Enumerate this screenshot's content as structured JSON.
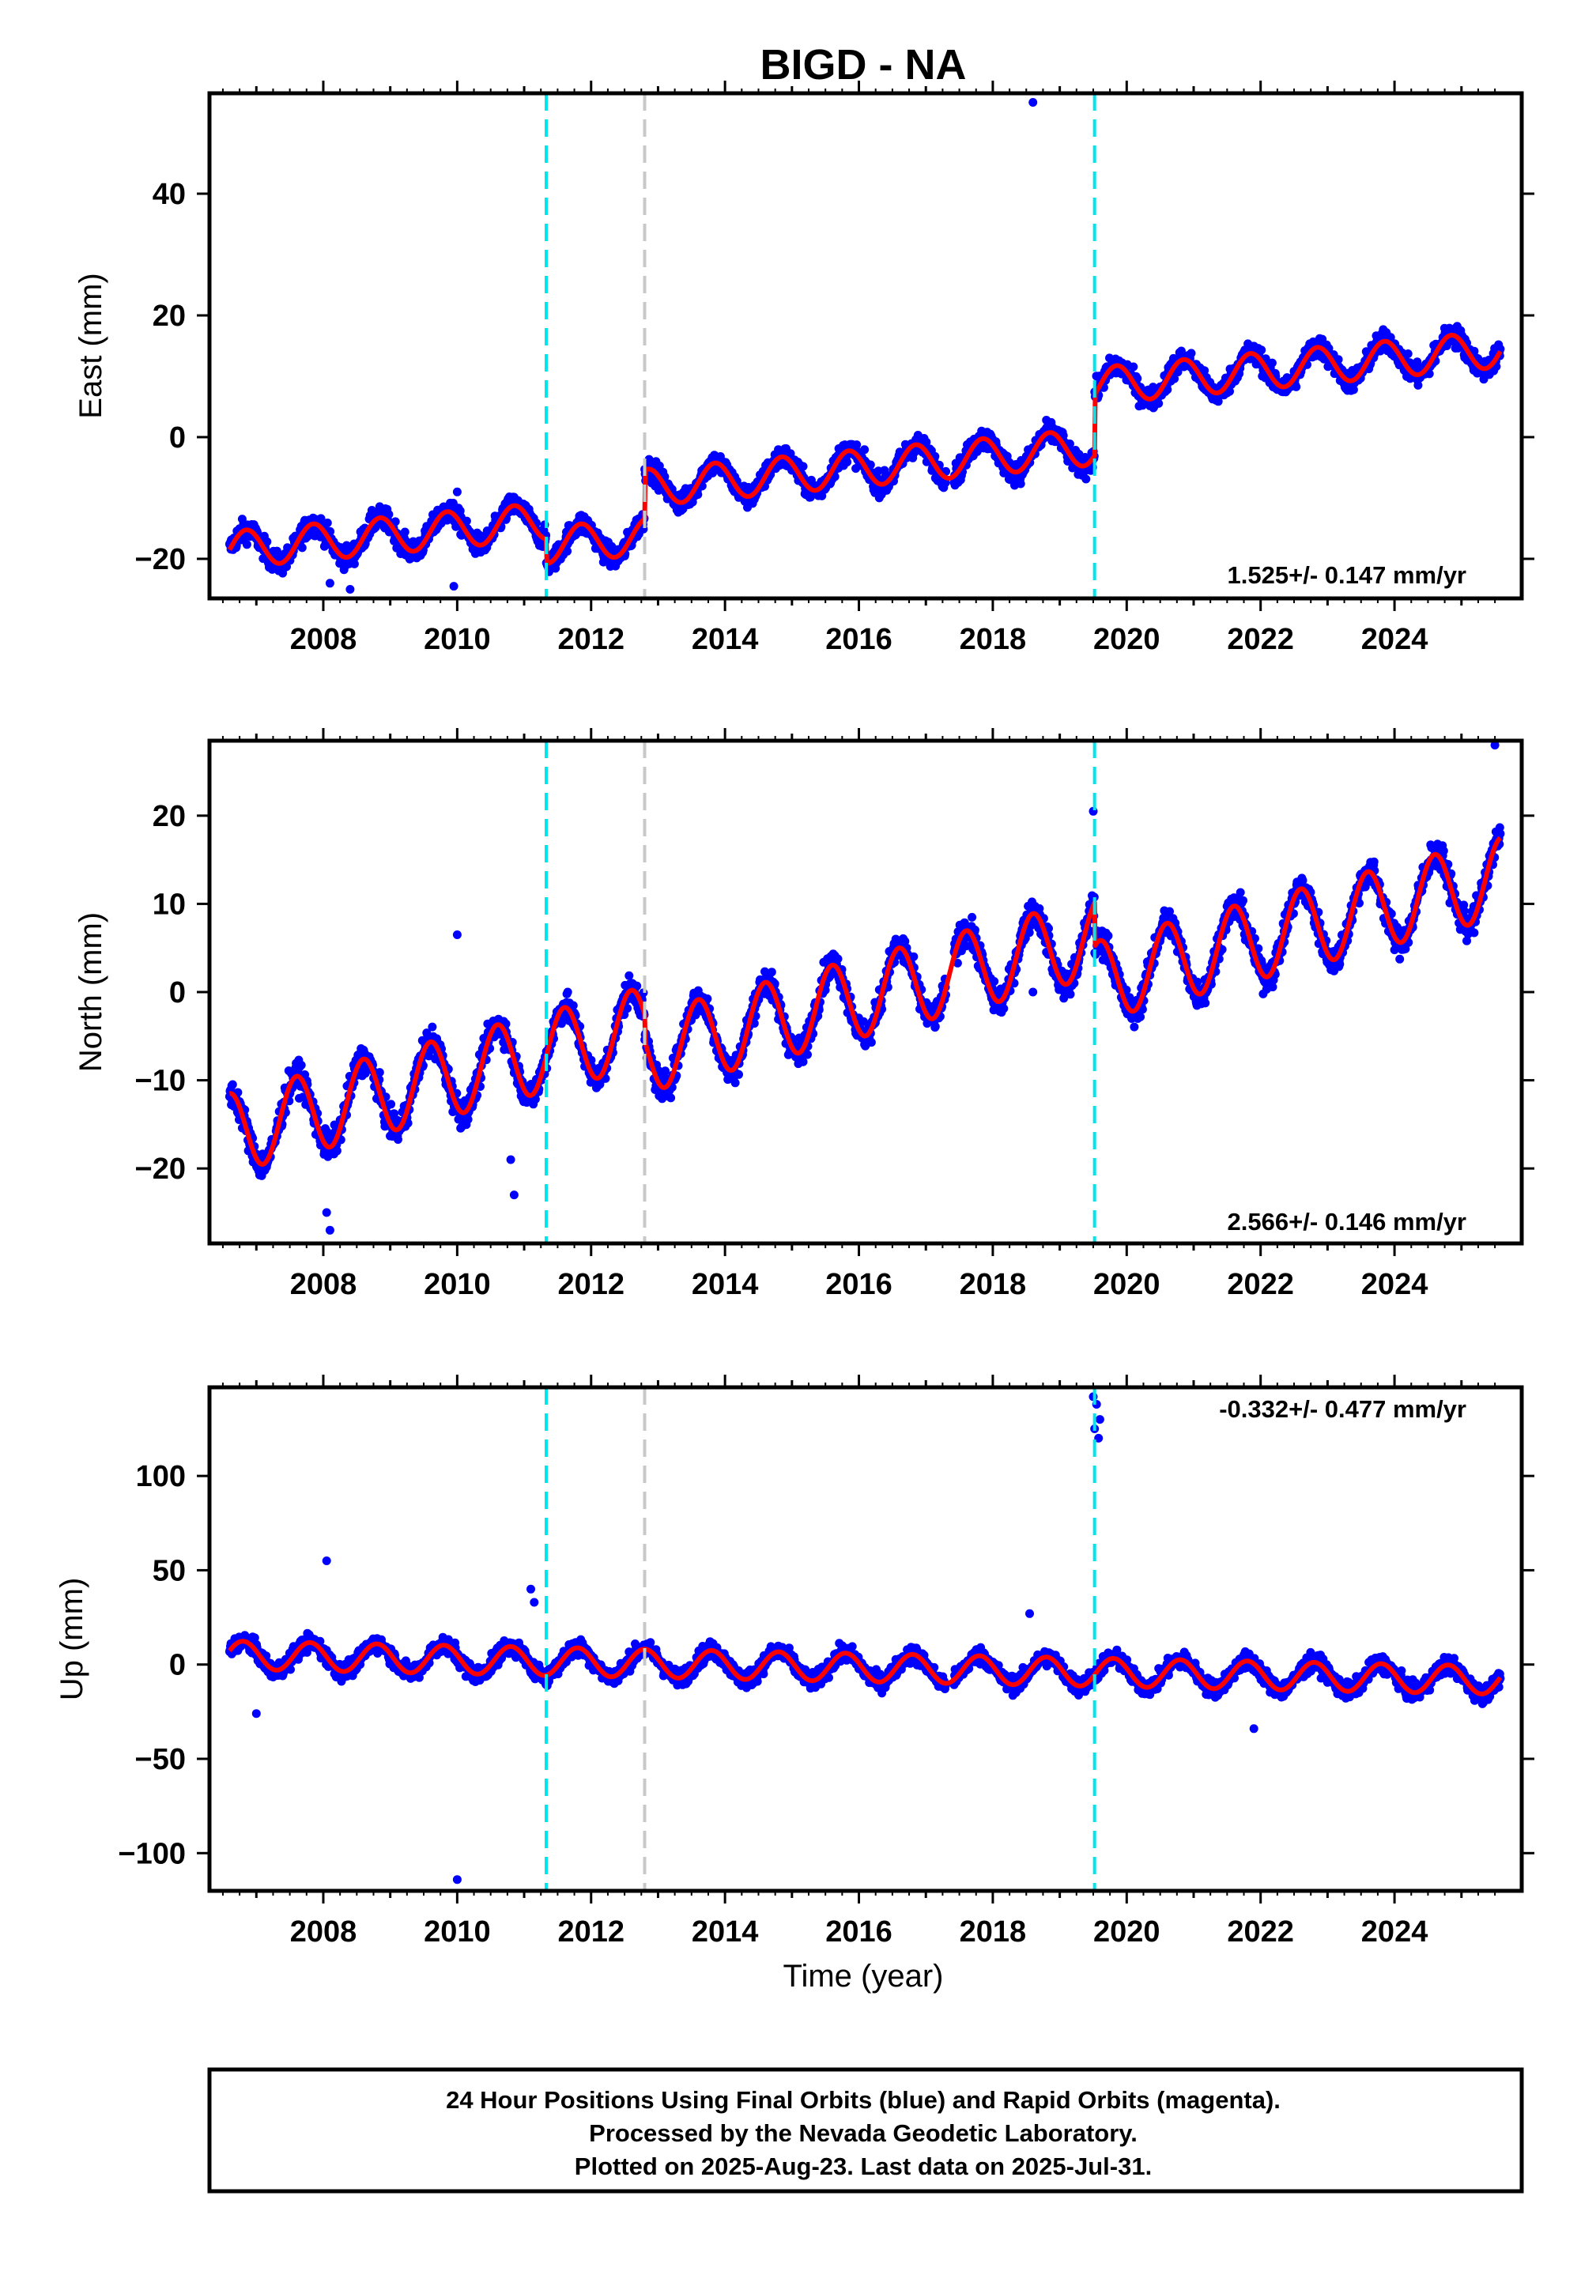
{
  "title": "BIGD - NA",
  "xlabel": "Time (year)",
  "x_tick_labels": [
    "2008",
    "2010",
    "2012",
    "2014",
    "2016",
    "2018",
    "2020",
    "2022",
    "2024"
  ],
  "colors": {
    "points": "#0000ff",
    "model": "#ff0000",
    "equipment_change": "#00e5ee",
    "other_event": "#c8c8c8"
  },
  "caption": {
    "line1": "24 Hour Positions Using Final Orbits (blue) and Rapid Orbits (magenta).",
    "line2": "Processed by the Nevada Geodetic Laboratory.",
    "line3": "Plotted on 2025-Aug-23. Last data on 2025-Jul-31."
  },
  "chart_data": [
    {
      "type": "scatter",
      "ylabel": "East (mm)",
      "rate": "1.525+/- 0.147 mm/yr",
      "xlim": [
        2006.3,
        2025.9
      ],
      "ylim": [
        -26.5,
        56.5
      ],
      "y_ticks": [
        -20,
        0,
        20,
        40
      ],
      "y_tick_labels": [
        "−20",
        "0",
        "20",
        "40"
      ],
      "events_cyan": [
        2011.33,
        2019.52
      ],
      "events_gray": [
        2012.8
      ],
      "offsets": [
        {
          "at": 2011.33,
          "jump": -4
        },
        {
          "at": 2012.8,
          "jump": 8
        },
        {
          "at": 2019.52,
          "jump": 10
        }
      ],
      "base": {
        "start": 2006.6,
        "value": -18.5,
        "rate": 1.0
      },
      "seasonal": {
        "amplitude": 3.0,
        "phase": 0.6
      },
      "scatter_spread": 1.8,
      "outliers": [
        [
          2008.1,
          -24
        ],
        [
          2008.4,
          -25
        ],
        [
          2009.95,
          -24.5
        ],
        [
          2018.6,
          55
        ],
        [
          2010.0,
          -9
        ]
      ],
      "model_color": "red"
    },
    {
      "type": "scatter",
      "ylabel": "North (mm)",
      "rate": "2.566+/- 0.146 mm/yr",
      "xlim": [
        2006.3,
        2025.9
      ],
      "ylim": [
        -28.5,
        28.5
      ],
      "y_ticks": [
        -20,
        -10,
        0,
        10,
        20
      ],
      "y_tick_labels": [
        "−20",
        "−10",
        "0",
        "10",
        "20"
      ],
      "events_cyan": [
        2011.33,
        2019.52
      ],
      "events_gray": [
        2012.8
      ],
      "offsets": [
        {
          "at": 2012.8,
          "jump": -3
        },
        {
          "at": 2019.52,
          "jump": -5
        }
      ],
      "base": {
        "start": 2006.6,
        "value": -16,
        "rate": 1.95
      },
      "seasonal": {
        "amplitude": 4.5,
        "phase": 0.35
      },
      "scatter_spread": 1.6,
      "outliers": [
        [
          2008.05,
          -25
        ],
        [
          2008.1,
          -27
        ],
        [
          2010.0,
          6.5
        ],
        [
          2010.85,
          -23
        ],
        [
          2010.8,
          -19
        ],
        [
          2018.6,
          0
        ],
        [
          2019.5,
          20.5
        ],
        [
          2025.5,
          28
        ]
      ],
      "model_color": "red"
    },
    {
      "type": "scatter",
      "ylabel": "Up (mm)",
      "rate": "-0.332+/- 0.477 mm/yr",
      "xlim": [
        2006.3,
        2025.9
      ],
      "ylim": [
        -120,
        147
      ],
      "y_ticks": [
        -100,
        -50,
        0,
        50,
        100
      ],
      "y_tick_labels": [
        "−100",
        "−50",
        "0",
        "50",
        "100"
      ],
      "events_cyan": [
        2011.33,
        2019.52
      ],
      "events_gray": [
        2012.8
      ],
      "offsets": [],
      "base": {
        "start": 2006.6,
        "value": 5,
        "rate": -0.7
      },
      "seasonal": {
        "amplitude": 7.5,
        "phase": 0.55
      },
      "scatter_spread": 4.5,
      "outliers": [
        [
          2008.05,
          55
        ],
        [
          2010.0,
          -114
        ],
        [
          2011.1,
          40
        ],
        [
          2011.15,
          33
        ],
        [
          2007.0,
          -26
        ],
        [
          2019.5,
          142
        ],
        [
          2019.55,
          138
        ],
        [
          2019.6,
          130
        ],
        [
          2019.52,
          125
        ],
        [
          2019.58,
          120
        ],
        [
          2018.55,
          27
        ],
        [
          2021.9,
          -34
        ]
      ],
      "model_color": "red"
    }
  ]
}
